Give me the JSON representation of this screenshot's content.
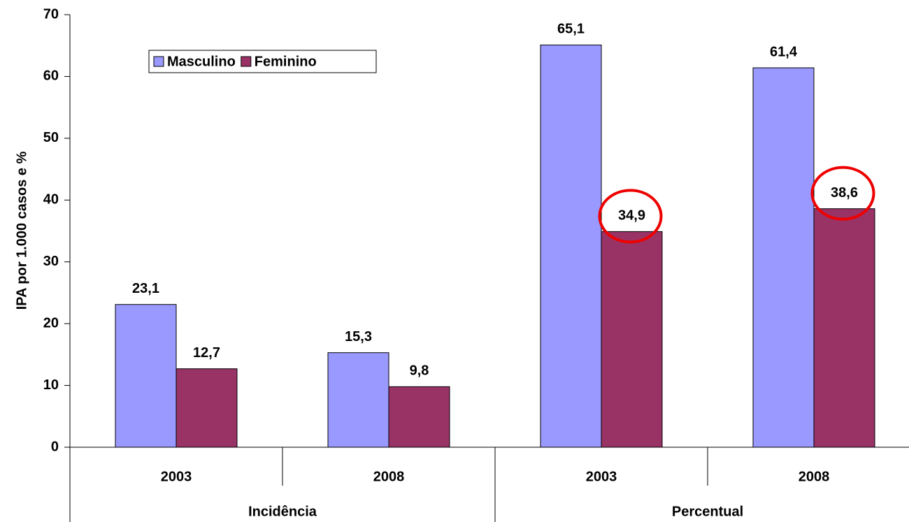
{
  "chart_data": {
    "type": "bar",
    "y_label": "IPA por 1.000 casos e %",
    "categories": [
      "2003",
      "2008",
      "2003",
      "2008"
    ],
    "group_labels": [
      "Incidência",
      "Percentual"
    ],
    "series": [
      {
        "name": "Masculino",
        "color": "#9999ff",
        "values": [
          23.1,
          15.3,
          65.1,
          61.4
        ],
        "value_labels": [
          "23,1",
          "15,3",
          "65,1",
          "61,4"
        ]
      },
      {
        "name": "Feminino",
        "color": "#993366",
        "values": [
          12.7,
          9.8,
          34.9,
          38.6
        ],
        "value_labels": [
          "12,7",
          "9,8",
          "34,9",
          "38,6"
        ]
      }
    ],
    "ylim": [
      0,
      70
    ],
    "yticks": [
      0,
      10,
      20,
      30,
      40,
      50,
      60,
      70
    ],
    "grid": false,
    "legend": "top-left"
  }
}
